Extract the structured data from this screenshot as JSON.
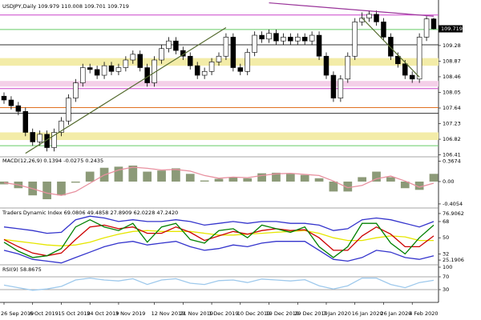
{
  "chart_data": [
    {
      "type": "candlestick",
      "title": "USDJPY,Daily  109.979 110.008 109.701 109.719",
      "open": [
        107.95,
        107.85,
        107.7,
        107.55,
        107.0,
        106.75,
        106.95,
        106.6,
        107.0,
        107.3,
        107.9,
        108.3,
        108.7,
        108.65,
        108.5,
        108.75,
        108.6,
        108.7,
        108.9,
        109.05,
        108.7,
        108.3,
        108.9,
        109.2,
        109.4,
        109.15,
        109.0,
        108.75,
        108.5,
        108.6,
        108.85,
        109.0,
        109.5,
        108.7,
        108.6,
        109.1,
        109.55,
        109.45,
        109.6,
        109.4,
        109.5,
        109.4,
        109.5,
        109.4,
        109.55,
        109.0,
        108.5,
        107.9,
        108.4,
        109.0,
        109.9,
        110.0,
        110.1,
        109.9,
        109.5,
        109.0,
        108.8,
        108.5,
        108.4,
        109.5,
        109.979
      ],
      "high": [
        108.05,
        107.95,
        107.8,
        107.65,
        107.1,
        107.05,
        107.05,
        107.1,
        107.4,
        108.0,
        108.4,
        108.8,
        108.8,
        108.75,
        108.85,
        108.85,
        108.8,
        109.0,
        109.15,
        109.15,
        108.8,
        109.0,
        109.3,
        109.5,
        109.5,
        109.25,
        109.1,
        108.85,
        108.7,
        108.95,
        109.1,
        109.6,
        109.6,
        108.8,
        109.2,
        109.65,
        109.65,
        109.7,
        109.7,
        109.6,
        109.6,
        109.6,
        109.6,
        109.65,
        109.65,
        109.1,
        108.6,
        108.5,
        109.1,
        110.0,
        110.15,
        110.2,
        110.2,
        110.0,
        109.6,
        109.1,
        108.9,
        108.6,
        109.6,
        110.05,
        110.008
      ],
      "low": [
        107.75,
        107.6,
        107.45,
        106.9,
        106.65,
        106.65,
        106.5,
        106.5,
        106.9,
        107.2,
        107.8,
        108.2,
        108.55,
        108.4,
        108.4,
        108.5,
        108.5,
        108.6,
        108.8,
        108.6,
        108.2,
        108.2,
        108.8,
        109.1,
        109.05,
        108.9,
        108.65,
        108.4,
        108.4,
        108.5,
        108.75,
        108.9,
        108.6,
        108.5,
        108.5,
        109.0,
        109.35,
        109.35,
        109.3,
        109.3,
        109.3,
        109.3,
        109.3,
        109.3,
        108.9,
        108.4,
        107.8,
        107.8,
        108.3,
        108.9,
        109.8,
        109.9,
        109.8,
        109.4,
        108.9,
        108.7,
        108.4,
        108.3,
        108.3,
        109.4,
        109.701
      ],
      "close": [
        107.85,
        107.7,
        107.55,
        107.0,
        106.75,
        106.95,
        106.6,
        107.0,
        107.3,
        107.9,
        108.3,
        108.7,
        108.65,
        108.5,
        108.75,
        108.6,
        108.7,
        108.9,
        109.05,
        108.7,
        108.3,
        108.9,
        109.2,
        109.4,
        109.15,
        109.0,
        108.75,
        108.5,
        108.6,
        108.85,
        109.0,
        109.5,
        108.7,
        108.6,
        109.1,
        109.55,
        109.45,
        109.6,
        109.4,
        109.5,
        109.4,
        109.5,
        109.4,
        109.55,
        109.0,
        108.5,
        107.9,
        108.4,
        109.0,
        109.9,
        110.0,
        110.1,
        109.9,
        109.5,
        109.0,
        108.8,
        108.5,
        108.4,
        109.5,
        109.979,
        109.719
      ],
      "up_color": "#ffffff",
      "down_color": "#000000",
      "ylim": [
        106.38,
        110.37
      ],
      "yticks": [
        109.28,
        108.87,
        108.46,
        108.05,
        107.64,
        107.23,
        106.82,
        106.41
      ],
      "price_label": 109.719,
      "xlim": [
        0,
        60
      ],
      "xticks": [
        {
          "value": 0,
          "label": "26 Sep 2019"
        },
        {
          "value": 4,
          "label": "6 Oct 2019"
        },
        {
          "value": 8,
          "label": "15 Oct 2019"
        },
        {
          "value": 12,
          "label": "24 Oct 2019"
        },
        {
          "value": 16,
          "label": "3 Nov 2019"
        },
        {
          "value": 21,
          "label": "12 Nov 2019"
        },
        {
          "value": 25,
          "label": "21 Nov 2019"
        },
        {
          "value": 29,
          "label": "1 Dec 2019"
        },
        {
          "value": 33,
          "label": "10 Dec 2019"
        },
        {
          "value": 37,
          "label": "19 Dec 2019"
        },
        {
          "value": 41,
          "label": "29 Dec 2019"
        },
        {
          "value": 45,
          "label": "7 Jan 2020"
        },
        {
          "value": 49,
          "label": "16 Jan 2020"
        },
        {
          "value": 53,
          "label": "26 Jan 2020"
        },
        {
          "value": 57,
          "label": "4 Feb 2020"
        }
      ],
      "bands": [
        {
          "range": [
            108.75,
            108.95
          ],
          "color": "#f3eca8"
        },
        {
          "range": [
            108.2,
            108.35
          ],
          "color": "#f4cfe8"
        },
        {
          "range": [
            106.8,
            107.0
          ],
          "color": "#f3eca8"
        }
      ],
      "levels": [
        {
          "value": 110.08,
          "color": "#cc44cc"
        },
        {
          "value": 109.7,
          "color": "#66cc66"
        },
        {
          "value": 109.3,
          "color": "#333333"
        },
        {
          "value": 108.15,
          "color": "#cc44cc"
        },
        {
          "value": 107.65,
          "color": "#e07020"
        },
        {
          "value": 107.5,
          "color": "#333333"
        },
        {
          "value": 106.65,
          "color": "#66cc66"
        }
      ],
      "trendlines": [
        {
          "x": [
            3,
            31
          ],
          "y": [
            106.45,
            109.75
          ],
          "color": "#556b2f"
        },
        {
          "x": [
            37,
            60
          ],
          "y": [
            110.4,
            110.05
          ],
          "color": "#993399"
        },
        {
          "x": [
            50,
            58
          ],
          "y": [
            110.0,
            108.45
          ],
          "color": "#556b2f"
        }
      ]
    },
    {
      "type": "bar",
      "title": "MACD(12,26,9) 0.1394 -0.0275 0.2435",
      "x": [
        0,
        2,
        4,
        6,
        8,
        10,
        12,
        14,
        16,
        18,
        20,
        22,
        24,
        26,
        28,
        30,
        32,
        34,
        36,
        38,
        40,
        42,
        44,
        46,
        48,
        50,
        52,
        54,
        56,
        58,
        60
      ],
      "values": [
        -0.05,
        -0.12,
        -0.25,
        -0.32,
        -0.25,
        -0.02,
        0.18,
        0.25,
        0.27,
        0.29,
        0.18,
        0.2,
        0.24,
        0.14,
        0.02,
        0.05,
        0.08,
        0.06,
        0.15,
        0.16,
        0.14,
        0.12,
        0.06,
        -0.18,
        -0.18,
        0.08,
        0.18,
        0.08,
        -0.12,
        -0.15,
        0.14
      ],
      "color": "#8c9a78",
      "series": [
        {
          "color": "#e8909f",
          "values": [
            -0.02,
            -0.06,
            -0.13,
            -0.21,
            -0.25,
            -0.18,
            -0.03,
            0.12,
            0.21,
            0.26,
            0.24,
            0.21,
            0.22,
            0.19,
            0.11,
            0.06,
            0.08,
            0.07,
            0.11,
            0.14,
            0.15,
            0.13,
            0.11,
            0.01,
            -0.11,
            -0.07,
            0.05,
            0.1,
            0.01,
            -0.1,
            -0.03
          ]
        }
      ],
      "xlim": [
        0,
        60
      ],
      "ylim": [
        -0.45,
        0.42
      ],
      "yticks": [
        0.3674,
        {
          "value": 0,
          "label": "0.00"
        },
        -0.4054
      ]
    },
    {
      "type": "line",
      "title": "Traders Dynamic Index 69.0806 49.4858 27.8909 62.0228 47.2420",
      "x": [
        0,
        2,
        4,
        6,
        8,
        10,
        12,
        14,
        16,
        18,
        20,
        22,
        24,
        26,
        28,
        30,
        32,
        34,
        36,
        38,
        40,
        42,
        44,
        46,
        48,
        50,
        52,
        54,
        56,
        58,
        60
      ],
      "series": [
        {
          "color": "#3333cc",
          "values": [
            62,
            60,
            58,
            55,
            56,
            70,
            74,
            72,
            68,
            70,
            68,
            68,
            70,
            68,
            64,
            66,
            68,
            66,
            68,
            68,
            66,
            66,
            64,
            58,
            60,
            70,
            72,
            70,
            66,
            62,
            68
          ]
        },
        {
          "color": "#3333cc",
          "values": [
            36,
            32,
            26,
            24,
            22,
            28,
            34,
            40,
            44,
            46,
            42,
            44,
            46,
            40,
            36,
            38,
            42,
            40,
            44,
            46,
            46,
            46,
            36,
            26,
            24,
            28,
            36,
            34,
            28,
            26,
            30
          ]
        },
        {
          "color": "#e6e600",
          "values": [
            48,
            46,
            44,
            42,
            41,
            42,
            45,
            50,
            54,
            57,
            58,
            57,
            57,
            57,
            55,
            53,
            53,
            54,
            55,
            56,
            57,
            58,
            55,
            50,
            47,
            47,
            50,
            52,
            51,
            47,
            47
          ]
        },
        {
          "color": "#cc0000",
          "values": [
            48,
            40,
            33,
            30,
            33,
            48,
            62,
            64,
            60,
            62,
            55,
            55,
            62,
            56,
            47,
            52,
            57,
            54,
            58,
            60,
            58,
            59,
            50,
            36,
            36,
            52,
            62,
            54,
            40,
            40,
            52
          ]
        },
        {
          "color": "#008000",
          "values": [
            45,
            35,
            28,
            30,
            38,
            62,
            70,
            62,
            58,
            66,
            45,
            62,
            66,
            48,
            44,
            58,
            60,
            50,
            64,
            60,
            56,
            62,
            40,
            28,
            40,
            66,
            66,
            44,
            32,
            50,
            64
          ]
        }
      ],
      "xlim": [
        0,
        60
      ],
      "ylim": [
        20.8,
        81.3
      ],
      "yticks": [
        76.9062,
        68,
        50,
        32,
        25.1906
      ]
    },
    {
      "type": "line",
      "title": "RSI(9) 58.8675",
      "x": [
        0,
        2,
        4,
        6,
        8,
        10,
        12,
        14,
        16,
        18,
        20,
        22,
        24,
        26,
        28,
        30,
        32,
        34,
        36,
        38,
        40,
        42,
        44,
        46,
        48,
        50,
        52,
        54,
        56,
        58,
        60
      ],
      "series": [
        {
          "color": "#9ec9ec",
          "values": [
            44,
            36,
            28,
            32,
            40,
            60,
            66,
            60,
            57,
            64,
            46,
            60,
            64,
            50,
            46,
            58,
            60,
            52,
            63,
            60,
            57,
            61,
            42,
            32,
            42,
            66,
            66,
            46,
            36,
            52,
            59
          ]
        }
      ],
      "levels": [
        {
          "value": 70,
          "color": "#aaaaaa"
        },
        {
          "value": 30,
          "color": "#aaaaaa"
        }
      ],
      "xlim": [
        0,
        60
      ],
      "ylim": [
        0,
        100
      ],
      "yticks": [
        100,
        70,
        30
      ]
    }
  ]
}
